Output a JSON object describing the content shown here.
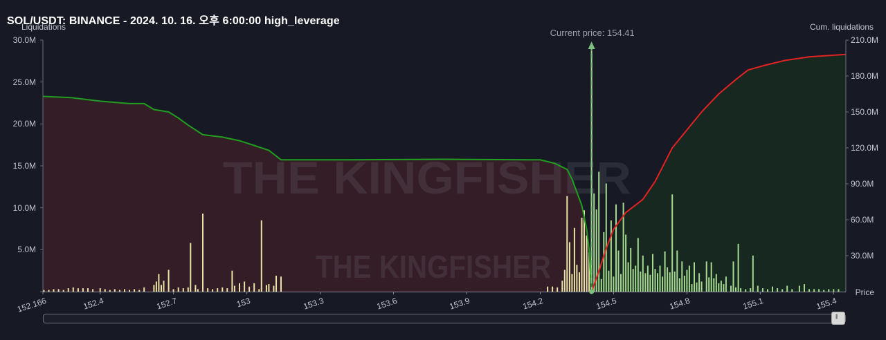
{
  "header": {
    "title": "SOL/USDT: BINANCE - 2024. 10. 16. 오후 6:00:00 high_leverage"
  },
  "watermark": {
    "big": "THE KINGFISHER",
    "small": "THE KINGFISHER"
  },
  "current_price_label": "Current price: 154.41",
  "chart_data": {
    "type": "bar",
    "current_price": 154.41,
    "xlim": [
      152.166,
      155.45
    ],
    "x_ticks": [
      "152.166",
      "152.4",
      "152.7",
      "153",
      "153.3",
      "153.6",
      "153.9",
      "154.2",
      "154.5",
      "154.8",
      "155.1",
      "155.4"
    ],
    "x_tick_values": [
      152.166,
      152.4,
      152.7,
      153.0,
      153.3,
      153.6,
      153.9,
      154.2,
      154.5,
      154.8,
      155.1,
      155.4
    ],
    "xlabel": "Price",
    "left_axis": {
      "label": "Liquidations",
      "ticks": [
        "5.0M",
        "10.0M",
        "15.0M",
        "20.0M",
        "25.0M",
        "30.0M"
      ],
      "tick_values": [
        5,
        10,
        15,
        20,
        25,
        30
      ],
      "ylim": [
        0,
        30
      ],
      "unit": "M"
    },
    "right_axis": {
      "label": "Cum. liquidations",
      "ticks": [
        "30.0M",
        "60.0M",
        "90.0M",
        "120.0M",
        "150.0M",
        "180.0M",
        "210.0M"
      ],
      "tick_values": [
        30,
        60,
        90,
        120,
        150,
        180,
        210
      ],
      "ylim": [
        0,
        210
      ],
      "unit": "M"
    },
    "colors": {
      "bar": "#e8e3a6",
      "bar_right": "#a5d98f",
      "short_cum_line": "#1f9e1f",
      "short_cum_fill": "#3a1e28",
      "long_cum_line": "#e32222",
      "long_cum_fill": "#172a20",
      "current_price_line": "#7fbf7f"
    },
    "bars": [
      {
        "x": 152.17,
        "y": 0.2
      },
      {
        "x": 152.19,
        "y": 0.2
      },
      {
        "x": 152.21,
        "y": 0.3
      },
      {
        "x": 152.23,
        "y": 0.3
      },
      {
        "x": 152.25,
        "y": 0.2
      },
      {
        "x": 152.27,
        "y": 0.4
      },
      {
        "x": 152.29,
        "y": 0.5
      },
      {
        "x": 152.31,
        "y": 0.4
      },
      {
        "x": 152.33,
        "y": 0.4
      },
      {
        "x": 152.35,
        "y": 0.4
      },
      {
        "x": 152.37,
        "y": 0.3
      },
      {
        "x": 152.4,
        "y": 0.4
      },
      {
        "x": 152.42,
        "y": 0.3
      },
      {
        "x": 152.44,
        "y": 0.2
      },
      {
        "x": 152.46,
        "y": 0.3
      },
      {
        "x": 152.48,
        "y": 0.2
      },
      {
        "x": 152.5,
        "y": 0.3
      },
      {
        "x": 152.52,
        "y": 0.2
      },
      {
        "x": 152.54,
        "y": 0.3
      },
      {
        "x": 152.56,
        "y": 0.2
      },
      {
        "x": 152.58,
        "y": 0.5
      },
      {
        "x": 152.62,
        "y": 0.8
      },
      {
        "x": 152.63,
        "y": 1.2
      },
      {
        "x": 152.64,
        "y": 2.1
      },
      {
        "x": 152.65,
        "y": 0.8
      },
      {
        "x": 152.66,
        "y": 1.3
      },
      {
        "x": 152.68,
        "y": 2.6
      },
      {
        "x": 152.7,
        "y": 0.3
      },
      {
        "x": 152.72,
        "y": 0.5
      },
      {
        "x": 152.74,
        "y": 0.4
      },
      {
        "x": 152.76,
        "y": 0.5
      },
      {
        "x": 152.77,
        "y": 5.8
      },
      {
        "x": 152.79,
        "y": 0.8
      },
      {
        "x": 152.8,
        "y": 0.3
      },
      {
        "x": 152.82,
        "y": 9.3
      },
      {
        "x": 152.84,
        "y": 0.4
      },
      {
        "x": 152.86,
        "y": 0.3
      },
      {
        "x": 152.88,
        "y": 0.4
      },
      {
        "x": 152.9,
        "y": 0.5
      },
      {
        "x": 152.92,
        "y": 0.4
      },
      {
        "x": 152.94,
        "y": 2.5
      },
      {
        "x": 152.95,
        "y": 0.7
      },
      {
        "x": 152.97,
        "y": 1.0
      },
      {
        "x": 152.99,
        "y": 1.2
      },
      {
        "x": 153.01,
        "y": 0.6
      },
      {
        "x": 153.03,
        "y": 1.0
      },
      {
        "x": 153.05,
        "y": 0.3
      },
      {
        "x": 153.06,
        "y": 8.5
      },
      {
        "x": 153.08,
        "y": 0.8
      },
      {
        "x": 153.09,
        "y": 0.9
      },
      {
        "x": 153.11,
        "y": 0.7
      },
      {
        "x": 153.12,
        "y": 1.9
      },
      {
        "x": 153.14,
        "y": 1.8
      },
      {
        "x": 154.23,
        "y": 0.6
      },
      {
        "x": 154.25,
        "y": 0.6
      },
      {
        "x": 154.27,
        "y": 0.5
      },
      {
        "x": 154.29,
        "y": 1.3
      },
      {
        "x": 154.3,
        "y": 2.6
      },
      {
        "x": 154.31,
        "y": 11.4
      },
      {
        "x": 154.32,
        "y": 5.9
      },
      {
        "x": 154.33,
        "y": 2.1
      },
      {
        "x": 154.34,
        "y": 7.6
      },
      {
        "x": 154.35,
        "y": 3.2
      },
      {
        "x": 154.36,
        "y": 2.3
      },
      {
        "x": 154.37,
        "y": 8.8
      },
      {
        "x": 154.38,
        "y": 9.7
      },
      {
        "x": 154.39,
        "y": 6.7
      },
      {
        "x": 154.4,
        "y": 4.7
      },
      {
        "x": 154.41,
        "y": 28.8
      },
      {
        "x": 154.42,
        "y": 11.7
      },
      {
        "x": 154.43,
        "y": 9.8
      },
      {
        "x": 154.44,
        "y": 14.3
      },
      {
        "x": 154.45,
        "y": 1.5
      },
      {
        "x": 154.46,
        "y": 7.1
      },
      {
        "x": 154.47,
        "y": 12.9
      },
      {
        "x": 154.48,
        "y": 2.5
      },
      {
        "x": 154.49,
        "y": 8.5
      },
      {
        "x": 154.5,
        "y": 1.8
      },
      {
        "x": 154.51,
        "y": 10.4
      },
      {
        "x": 154.52,
        "y": 4.9
      },
      {
        "x": 154.53,
        "y": 2.1
      },
      {
        "x": 154.54,
        "y": 10.6
      },
      {
        "x": 154.55,
        "y": 6.8
      },
      {
        "x": 154.56,
        "y": 3.5
      },
      {
        "x": 154.57,
        "y": 5.2
      },
      {
        "x": 154.58,
        "y": 2.7
      },
      {
        "x": 154.59,
        "y": 3.1
      },
      {
        "x": 154.6,
        "y": 6.4
      },
      {
        "x": 154.61,
        "y": 2.4
      },
      {
        "x": 154.62,
        "y": 4.3
      },
      {
        "x": 154.63,
        "y": 2.2
      },
      {
        "x": 154.64,
        "y": 3.1
      },
      {
        "x": 154.65,
        "y": 2.0
      },
      {
        "x": 154.66,
        "y": 4.5
      },
      {
        "x": 154.67,
        "y": 2.7
      },
      {
        "x": 154.68,
        "y": 2.2
      },
      {
        "x": 154.69,
        "y": 3.1
      },
      {
        "x": 154.7,
        "y": 1.8
      },
      {
        "x": 154.71,
        "y": 4.8
      },
      {
        "x": 154.72,
        "y": 2.9
      },
      {
        "x": 154.73,
        "y": 2.3
      },
      {
        "x": 154.74,
        "y": 11.6
      },
      {
        "x": 154.75,
        "y": 2.4
      },
      {
        "x": 154.76,
        "y": 4.9
      },
      {
        "x": 154.77,
        "y": 1.6
      },
      {
        "x": 154.78,
        "y": 3.6
      },
      {
        "x": 154.79,
        "y": 1.9
      },
      {
        "x": 154.8,
        "y": 2.6
      },
      {
        "x": 154.81,
        "y": 3.1
      },
      {
        "x": 154.82,
        "y": 0.9
      },
      {
        "x": 154.83,
        "y": 3.5
      },
      {
        "x": 154.84,
        "y": 1.1
      },
      {
        "x": 154.85,
        "y": 2.2
      },
      {
        "x": 154.86,
        "y": 1.2
      },
      {
        "x": 154.88,
        "y": 3.6
      },
      {
        "x": 154.89,
        "y": 1.7
      },
      {
        "x": 154.9,
        "y": 3.5
      },
      {
        "x": 154.91,
        "y": 1.6
      },
      {
        "x": 154.92,
        "y": 2.1
      },
      {
        "x": 154.93,
        "y": 1.0
      },
      {
        "x": 154.94,
        "y": 1.3
      },
      {
        "x": 154.95,
        "y": 0.9
      },
      {
        "x": 154.96,
        "y": 1.8
      },
      {
        "x": 154.98,
        "y": 0.7
      },
      {
        "x": 154.99,
        "y": 3.6
      },
      {
        "x": 155.0,
        "y": 0.5
      },
      {
        "x": 155.01,
        "y": 5.7
      },
      {
        "x": 155.02,
        "y": 0.4
      },
      {
        "x": 155.04,
        "y": 0.3
      },
      {
        "x": 155.06,
        "y": 0.4
      },
      {
        "x": 155.07,
        "y": 4.3
      },
      {
        "x": 155.09,
        "y": 0.7
      },
      {
        "x": 155.11,
        "y": 0.4
      },
      {
        "x": 155.13,
        "y": 0.3
      },
      {
        "x": 155.15,
        "y": 0.6
      },
      {
        "x": 155.17,
        "y": 0.4
      },
      {
        "x": 155.19,
        "y": 0.3
      },
      {
        "x": 155.21,
        "y": 0.7
      },
      {
        "x": 155.23,
        "y": 0.3
      },
      {
        "x": 155.26,
        "y": 0.7
      },
      {
        "x": 155.28,
        "y": 0.9
      },
      {
        "x": 155.3,
        "y": 0.3
      },
      {
        "x": 155.32,
        "y": 0.3
      },
      {
        "x": 155.34,
        "y": 0.3
      },
      {
        "x": 155.36,
        "y": 0.2
      },
      {
        "x": 155.38,
        "y": 0.3
      },
      {
        "x": 155.4,
        "y": 0.3
      },
      {
        "x": 155.42,
        "y": 0.3
      }
    ],
    "short_cumulative": [
      {
        "x": 152.166,
        "y": 163.0
      },
      {
        "x": 152.28,
        "y": 162.0
      },
      {
        "x": 152.4,
        "y": 159.0
      },
      {
        "x": 152.52,
        "y": 157.0
      },
      {
        "x": 152.58,
        "y": 157.0
      },
      {
        "x": 152.62,
        "y": 152.0
      },
      {
        "x": 152.68,
        "y": 150.0
      },
      {
        "x": 152.72,
        "y": 145.0
      },
      {
        "x": 152.76,
        "y": 139.0
      },
      {
        "x": 152.82,
        "y": 131.0
      },
      {
        "x": 152.9,
        "y": 129.0
      },
      {
        "x": 152.97,
        "y": 126.0
      },
      {
        "x": 153.03,
        "y": 122.0
      },
      {
        "x": 153.09,
        "y": 118.0
      },
      {
        "x": 153.14,
        "y": 110.0
      },
      {
        "x": 153.4,
        "y": 110.0
      },
      {
        "x": 153.8,
        "y": 110.5
      },
      {
        "x": 154.2,
        "y": 110.0
      },
      {
        "x": 154.26,
        "y": 107.0
      },
      {
        "x": 154.31,
        "y": 102.0
      },
      {
        "x": 154.33,
        "y": 94.0
      },
      {
        "x": 154.35,
        "y": 83.0
      },
      {
        "x": 154.37,
        "y": 72.0
      },
      {
        "x": 154.39,
        "y": 52.0
      },
      {
        "x": 154.4,
        "y": 35.0
      },
      {
        "x": 154.41,
        "y": 0.0
      }
    ],
    "long_cumulative": [
      {
        "x": 154.41,
        "y": 0.0
      },
      {
        "x": 154.44,
        "y": 17.0
      },
      {
        "x": 154.47,
        "y": 36.0
      },
      {
        "x": 154.5,
        "y": 52.0
      },
      {
        "x": 154.55,
        "y": 66.0
      },
      {
        "x": 154.62,
        "y": 77.0
      },
      {
        "x": 154.67,
        "y": 92.0
      },
      {
        "x": 154.7,
        "y": 104.0
      },
      {
        "x": 154.74,
        "y": 120.0
      },
      {
        "x": 154.8,
        "y": 135.0
      },
      {
        "x": 154.86,
        "y": 150.0
      },
      {
        "x": 154.93,
        "y": 165.0
      },
      {
        "x": 155.0,
        "y": 177.0
      },
      {
        "x": 155.05,
        "y": 185.0
      },
      {
        "x": 155.12,
        "y": 189.0
      },
      {
        "x": 155.2,
        "y": 193.0
      },
      {
        "x": 155.3,
        "y": 196.0
      },
      {
        "x": 155.45,
        "y": 198.0
      }
    ]
  }
}
